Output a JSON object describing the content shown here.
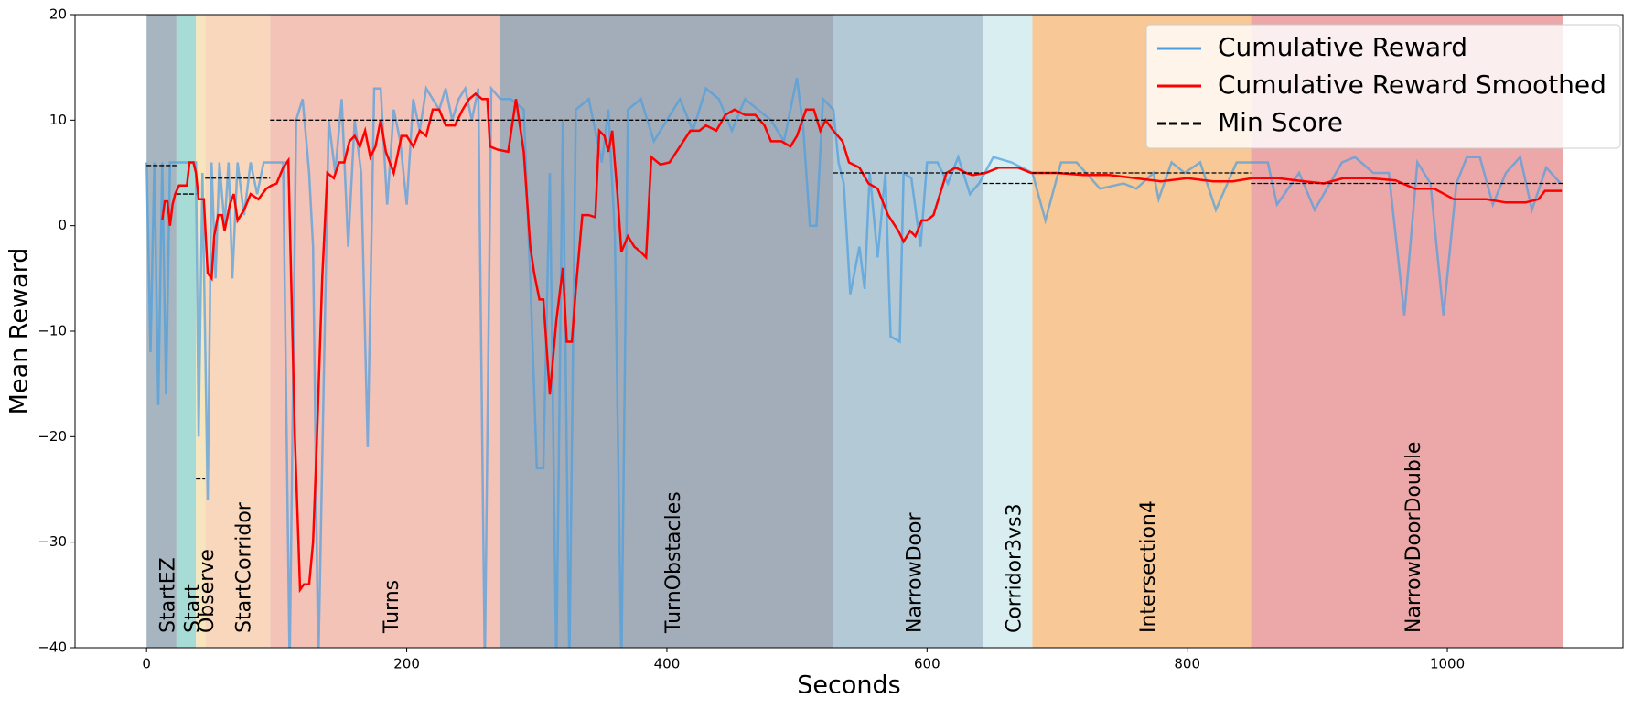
{
  "chart_data": {
    "type": "line",
    "xlabel": "Seconds",
    "ylabel": "Mean Reward",
    "xlim": [
      -55,
      1135
    ],
    "ylim": [
      -40,
      20
    ],
    "xticks": [
      0,
      200,
      400,
      600,
      800,
      1000
    ],
    "yticks": [
      {
        "value": -40,
        "label": "−40"
      },
      {
        "value": -30,
        "label": "−30"
      },
      {
        "value": -20,
        "label": "−20"
      },
      {
        "value": -10,
        "label": "−10"
      },
      0,
      10,
      20
    ],
    "legend": "upper right",
    "regions": [
      {
        "name": "StartEZ",
        "start": 0,
        "end": 23,
        "color": "#a6b5bf"
      },
      {
        "name": "Start",
        "start": 23,
        "end": 38,
        "color": "#a7dbd5"
      },
      {
        "name": "Observe",
        "start": 38,
        "end": 45,
        "color": "#f7e6bd"
      },
      {
        "name": "StartCorridor",
        "start": 45,
        "end": 95,
        "color": "#f9d7bd"
      },
      {
        "name": "Turns",
        "start": 95,
        "end": 272,
        "color": "#f4c3b8"
      },
      {
        "name": "TurnObstacles",
        "start": 272,
        "end": 528,
        "color": "#a3adb9"
      },
      {
        "name": "NarrowDoor",
        "start": 528,
        "end": 643,
        "color": "#b3c9d5"
      },
      {
        "name": "Corridor3vs3",
        "start": 643,
        "end": 681,
        "color": "#d9eef1"
      },
      {
        "name": "Intersection4",
        "start": 681,
        "end": 849,
        "color": "#f8c996"
      },
      {
        "name": "NarrowDoorDouble",
        "start": 849,
        "end": 1089,
        "color": "#eca8a8"
      }
    ],
    "series": [
      {
        "name": "Cumulative Reward",
        "color": "#4a9ee0",
        "x": [
          0,
          3,
          6,
          9,
          12,
          15,
          18,
          21,
          25,
          30,
          35,
          38,
          40,
          43,
          47,
          50,
          53,
          56,
          60,
          63,
          66,
          70,
          75,
          80,
          85,
          90,
          95,
          100,
          105,
          110,
          115,
          120,
          125,
          128,
          132,
          140,
          145,
          150,
          155,
          160,
          165,
          170,
          175,
          180,
          185,
          190,
          195,
          200,
          205,
          210,
          215,
          220,
          225,
          230,
          235,
          240,
          245,
          250,
          255,
          260,
          265,
          272,
          280,
          290,
          295,
          300,
          305,
          310,
          315,
          320,
          325,
          330,
          340,
          350,
          355,
          360,
          365,
          370,
          380,
          390,
          400,
          410,
          420,
          430,
          440,
          450,
          460,
          470,
          480,
          490,
          500,
          505,
          510,
          515,
          520,
          528,
          532,
          536,
          541,
          548,
          552,
          556,
          562,
          568,
          572,
          579,
          582,
          588,
          595,
          600,
          608,
          616,
          624,
          633,
          640,
          651,
          665,
          681,
          691,
          703,
          715,
          733,
          751,
          761,
          774,
          778,
          788,
          798,
          810,
          822,
          838,
          849,
          862,
          869,
          886,
          898,
          919,
          929,
          943,
          955,
          967,
          977,
          987,
          997,
          1007,
          1015,
          1025,
          1035,
          1045,
          1056,
          1065,
          1076,
          1087
        ],
        "values": [
          6,
          -12,
          6,
          -17,
          6,
          -16,
          6,
          6,
          6,
          6,
          6,
          6,
          -20,
          5,
          -26,
          6,
          -5,
          6,
          0,
          6,
          -5,
          6,
          1,
          6,
          3,
          6,
          6,
          6,
          6,
          -42,
          10,
          12,
          5,
          -2,
          -42,
          10,
          5,
          12,
          -2,
          10,
          5,
          -21,
          13,
          13,
          2,
          11,
          8,
          2,
          12,
          9,
          13,
          12,
          11,
          13,
          10,
          12,
          13,
          10,
          13,
          -42,
          13,
          12,
          12,
          11,
          -5,
          -23,
          -23,
          5,
          -42,
          10,
          -42,
          11,
          12,
          6,
          11,
          -1,
          -42,
          11,
          12,
          8,
          10,
          12,
          9,
          13,
          12,
          9,
          12,
          11,
          10,
          8,
          14,
          9,
          0,
          0,
          12,
          11,
          6,
          4,
          -6.5,
          -2,
          -6,
          5,
          -3,
          5,
          -10.5,
          -11,
          5,
          4.5,
          -2,
          6,
          6,
          4,
          6.5,
          3,
          4,
          6.5,
          6,
          5,
          0.5,
          6,
          6,
          3.5,
          4,
          3.5,
          5,
          2.5,
          6,
          5,
          6,
          1.5,
          6,
          6,
          6,
          2,
          5,
          1.5,
          6,
          6.5,
          5,
          5,
          -8.5,
          6,
          4,
          -8.5,
          4,
          6.5,
          6.5,
          2,
          5,
          6.5,
          1.5,
          5.5,
          4
        ]
      },
      {
        "name": "Cumulative Reward Smoothed",
        "color": "#ff0000",
        "x": [
          12,
          14,
          16,
          18,
          20,
          22,
          25,
          28,
          31,
          33,
          36,
          38,
          40,
          44,
          47,
          50,
          52,
          55,
          58,
          60,
          64,
          67,
          70,
          75,
          80,
          86,
          92,
          96,
          100,
          105,
          109,
          114,
          118,
          121,
          125,
          128,
          131,
          135,
          139,
          144,
          148,
          152,
          156,
          160,
          164,
          168,
          172,
          176,
          180,
          184,
          190,
          196,
          200,
          205,
          210,
          215,
          220,
          225,
          230,
          237,
          243,
          248,
          253,
          258,
          262,
          264,
          270,
          278,
          284,
          290,
          295,
          298,
          302,
          305,
          310,
          315,
          320,
          323,
          327,
          330,
          335,
          340,
          345,
          348,
          352,
          355,
          358,
          362,
          365,
          370,
          375,
          380,
          384,
          388,
          395,
          402,
          410,
          418,
          425,
          430,
          438,
          445,
          452,
          460,
          468,
          475,
          480,
          488,
          495,
          500,
          507,
          513,
          518,
          522,
          528,
          535,
          540,
          548,
          555,
          562,
          570,
          578,
          582,
          587,
          591,
          596,
          600,
          605,
          610,
          615,
          622,
          630,
          635,
          645,
          655,
          670,
          680,
          700,
          720,
          740,
          760,
          780,
          800,
          820,
          835,
          850,
          870,
          890,
          905,
          920,
          940,
          960,
          975,
          990,
          1005,
          1030,
          1045,
          1060,
          1070,
          1075,
          1088
        ],
        "values": [
          0.5,
          2.3,
          2.3,
          0,
          2,
          3,
          3.8,
          3.8,
          3.8,
          6,
          6,
          5,
          2.5,
          2.5,
          -4.5,
          -5,
          -1,
          1,
          1,
          -0.5,
          2,
          3,
          0.5,
          1.5,
          3,
          2.5,
          3.5,
          3.8,
          4,
          5.5,
          6.2,
          -20,
          -34.5,
          -34,
          -34,
          -30,
          -20,
          -5,
          5,
          4.5,
          6,
          6,
          8,
          8.5,
          7.5,
          9,
          6.5,
          7.5,
          10,
          7,
          5,
          8.5,
          8.5,
          7.5,
          9,
          8.5,
          11,
          11,
          9.5,
          9.5,
          11,
          12,
          12.5,
          12,
          12,
          7.5,
          7.2,
          7,
          12,
          7,
          -2,
          -4.5,
          -7,
          -7,
          -16,
          -9,
          -4,
          -11,
          -11,
          -6,
          1,
          1,
          0.8,
          9,
          8.5,
          7,
          9,
          3,
          -2.5,
          -1,
          -2,
          -2.5,
          -3,
          6.5,
          5.8,
          6,
          7.5,
          9,
          9,
          9.5,
          9,
          10.5,
          11,
          10.5,
          10.5,
          9.5,
          8,
          8,
          7.5,
          8.5,
          11,
          11,
          9,
          10,
          9,
          8,
          6,
          5.5,
          4,
          3.5,
          1,
          -0.5,
          -1.5,
          -0.5,
          -1,
          0.5,
          0.5,
          1,
          3,
          5,
          5.5,
          5,
          4.8,
          5,
          5.5,
          5.5,
          5,
          5,
          4.8,
          4.8,
          4.5,
          4.2,
          4.5,
          4.2,
          4.2,
          4.5,
          4.5,
          4.2,
          4,
          4.5,
          4.5,
          4.3,
          3.5,
          3.5,
          2.5,
          2.5,
          2.2,
          2.2,
          2.5,
          3.3,
          3.3
        ]
      }
    ],
    "min_score": {
      "name": "Min Score",
      "color": "#000000",
      "segments": [
        {
          "start": 0,
          "end": 23,
          "value": 5.7
        },
        {
          "start": 23,
          "end": 38,
          "value": 3
        },
        {
          "start": 38,
          "end": 45,
          "value": -24
        },
        {
          "start": 45,
          "end": 95,
          "value": 4.5
        },
        {
          "start": 95,
          "end": 528,
          "value": 10
        },
        {
          "start": 528,
          "end": 643,
          "value": 5
        },
        {
          "start": 643,
          "end": 681,
          "value": 4
        },
        {
          "start": 681,
          "end": 849,
          "value": 5
        },
        {
          "start": 849,
          "end": 1089,
          "value": 4
        }
      ]
    }
  }
}
